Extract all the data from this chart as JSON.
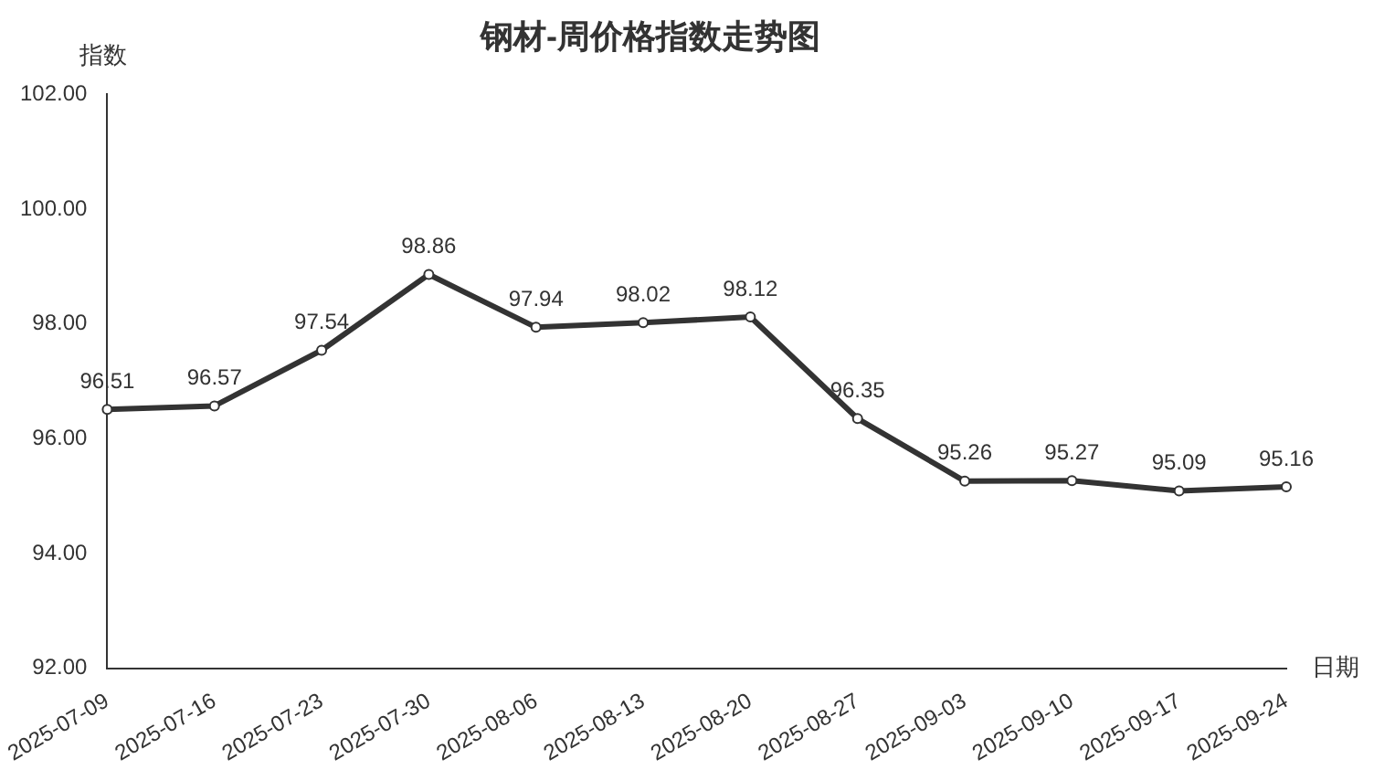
{
  "chart_data": {
    "type": "line",
    "title": "钢材-周价格指数走势图",
    "xlabel": "日期",
    "ylabel": "指数",
    "categories": [
      "2025-07-09",
      "2025-07-16",
      "2025-07-23",
      "2025-07-30",
      "2025-08-06",
      "2025-08-13",
      "2025-08-20",
      "2025-08-27",
      "2025-09-03",
      "2025-09-10",
      "2025-09-17",
      "2025-09-24"
    ],
    "series": [
      {
        "color": "#333333",
        "values": [
          96.51,
          96.57,
          97.54,
          98.86,
          97.94,
          98.02,
          98.12,
          96.35,
          95.26,
          95.27,
          95.09,
          95.16
        ]
      }
    ],
    "ylim": [
      92,
      102
    ],
    "yticks": [
      {
        "value": 92,
        "label": "92.00"
      },
      {
        "value": 94,
        "label": "94.00"
      },
      {
        "value": 96,
        "label": "96.00"
      },
      {
        "value": 98,
        "label": "98.00"
      },
      {
        "value": 100,
        "label": "100.00"
      },
      {
        "value": 102,
        "label": "102.00"
      }
    ],
    "grid": false,
    "legend": false,
    "marker": "circle",
    "line_style": "solid",
    "data_labels": true
  }
}
